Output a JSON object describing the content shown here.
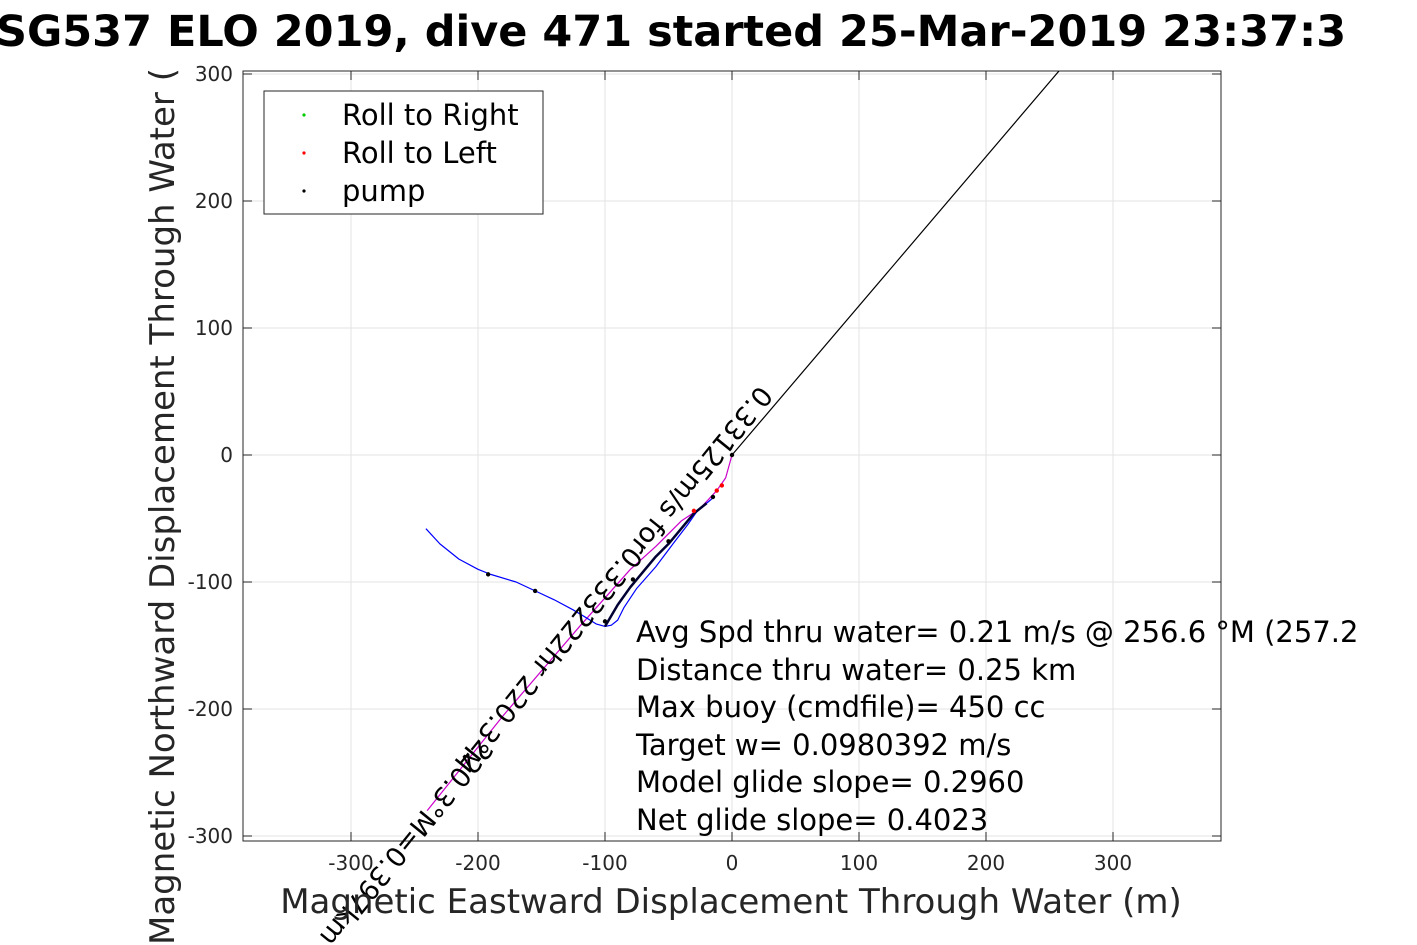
{
  "chart_data": {
    "type": "scatter",
    "title": "SG537 ELO 2019, dive 471 started 25-Mar-2019 23:37:3",
    "xlabel": "Magnetic Eastward Displacement Through Water (m)",
    "ylabel": "Magnetic Northward Displacement Through Water (",
    "xlim": [
      -385,
      385
    ],
    "ylim": [
      -303,
      303
    ],
    "grid": true,
    "legend_position": "top-left",
    "xticks": [
      -300,
      -200,
      -100,
      0,
      100,
      200,
      300
    ],
    "yticks": [
      300,
      200,
      100,
      0,
      -100,
      -200,
      -300
    ],
    "xtick_labels": [
      "-300",
      "-200",
      "-100",
      "0",
      "100",
      "200",
      "300"
    ],
    "ytick_labels": [
      "300",
      "200",
      "100",
      "0",
      "-100",
      "-200",
      "-300"
    ],
    "legend": [
      {
        "label": "Roll to Right",
        "color": "#00cc00"
      },
      {
        "label": "Roll to Left",
        "color": "#ff0000"
      },
      {
        "label": "pump",
        "color": "#000000"
      }
    ],
    "series": [
      {
        "kind": "line",
        "color": "#000000",
        "x": [
          0,
          258
        ],
        "y": [
          0,
          303
        ]
      },
      {
        "kind": "line",
        "color": "#cc00cc",
        "x": [
          -240,
          -180,
          -120,
          -80,
          -60,
          -40,
          -25,
          -12,
          -5,
          0
        ],
        "y": [
          -280,
          -205,
          -135,
          -90,
          -72,
          -52,
          -42,
          -28,
          -18,
          0
        ]
      },
      {
        "kind": "line",
        "color": "#0000ff",
        "x": [
          -241,
          -230,
          -215,
          -200,
          -190,
          -170,
          -155,
          -140,
          -125,
          -115,
          -107,
          -100,
          -95,
          -90,
          -85,
          -75,
          -60,
          -45,
          -35,
          -28,
          -20,
          -14
        ],
        "y": [
          -58,
          -70,
          -82,
          -90,
          -94,
          -100,
          -107,
          -114,
          -122,
          -128,
          -133,
          -135,
          -134,
          -130,
          -120,
          -105,
          -88,
          -68,
          -55,
          -45,
          -38,
          -33
        ]
      },
      {
        "kind": "line",
        "color": "#000033",
        "width": 2.5,
        "x": [
          -100,
          -90,
          -80,
          -70,
          -60,
          -50,
          -40,
          -30,
          -20
        ],
        "y": [
          -135,
          -118,
          -104,
          -92,
          -80,
          -70,
          -58,
          -46,
          -38
        ]
      }
    ],
    "points": {
      "pump": {
        "color": "#000000",
        "x": [
          -192,
          -155,
          -100,
          -78,
          -50,
          -15,
          0
        ],
        "y": [
          -94,
          -107,
          -131,
          -98,
          -68,
          -33,
          0
        ]
      },
      "roll_left": {
        "color": "#ff0000",
        "x": [
          -12,
          -8,
          -30
        ],
        "y": [
          -28,
          -24,
          -44
        ],
        "y_note": ""
      },
      "roll_right": {
        "color": "#00cc00",
        "x": [],
        "y": []
      }
    },
    "annotations_text": [
      "Avg Spd thru water=  0.21 m/s @ 256.6 °M (257.2",
      "Distance thru water=  0.25 km",
      "Max buoy (cmdfile)= 450 cc",
      "Target w= 0.0980392 m/s",
      "Model glide slope= 0.2960",
      "Net glide slope= 0.4023"
    ],
    "rotated_labels": [
      "0.33125m/s for0.333222hr 220.3°M",
      "220.3°M=0.397km"
    ]
  }
}
